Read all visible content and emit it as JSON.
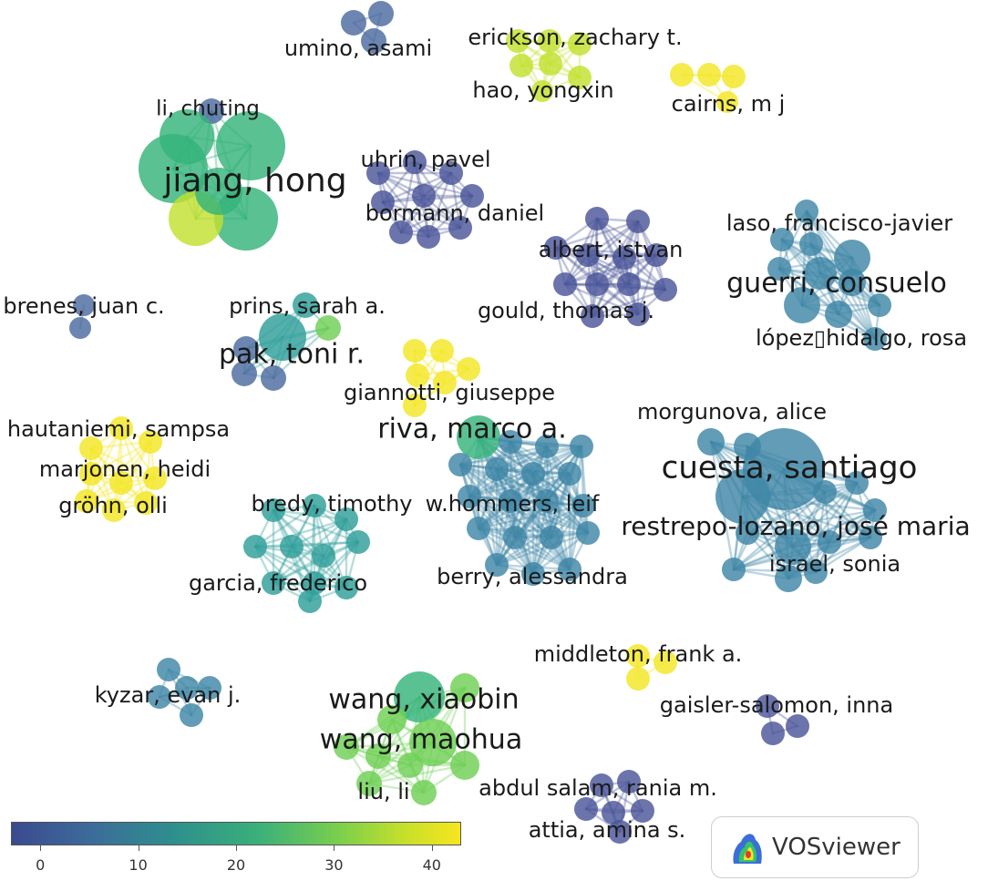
{
  "colors": {
    "c0": "#4b5598",
    "c5": "#4c6aa0",
    "c10": "#3f86a6",
    "c15": "#2f9f9a",
    "c20": "#35b37a",
    "c28": "#6fcf55",
    "c35": "#c2e02f",
    "c42": "#f3e626"
  },
  "clusters": [
    {
      "name": "jiang-hong",
      "labels": [
        "li, chuting",
        "jiang, hong"
      ]
    },
    {
      "name": "umino",
      "labels": [
        "umino, asami"
      ]
    },
    {
      "name": "erickson",
      "labels": [
        "erickson, zachary t.",
        "hao, yongxin"
      ]
    },
    {
      "name": "cairns",
      "labels": [
        "cairns, m j"
      ]
    },
    {
      "name": "uhrin",
      "labels": [
        "uhrin, pavel",
        "bormann, daniel"
      ]
    },
    {
      "name": "albert",
      "labels": [
        "albert, istvan",
        "gould, thomas j."
      ]
    },
    {
      "name": "guerri",
      "labels": [
        "laso, francisco-javier",
        "guerri, consuelo",
        "lópez▯hidalgo, rosa"
      ]
    },
    {
      "name": "brenes",
      "labels": [
        "brenes, juan c."
      ]
    },
    {
      "name": "pak",
      "labels": [
        "prins, sarah a.",
        "pak, toni r."
      ]
    },
    {
      "name": "giannotti",
      "labels": [
        "giannotti, giuseppe"
      ]
    },
    {
      "name": "hautaniemi",
      "labels": [
        "hautaniemi, sampsa",
        "marjonen, heidi",
        "gröhn, olli"
      ]
    },
    {
      "name": "riva",
      "labels": [
        "riva, marco a.",
        "w.hommers, leif",
        "berry, alessandra"
      ]
    },
    {
      "name": "cuesta",
      "labels": [
        "morgunova, alice",
        "cuesta, santiago",
        "restrepo-lozano, josé maria",
        "israel, sonia"
      ]
    },
    {
      "name": "bredy",
      "labels": [
        "bredy, timothy",
        "garcia, frederico"
      ]
    },
    {
      "name": "middleton",
      "labels": [
        "middleton, frank a."
      ]
    },
    {
      "name": "gaisler",
      "labels": [
        "gaisler-salomon, inna"
      ]
    },
    {
      "name": "kyzar",
      "labels": [
        "kyzar, evan j."
      ]
    },
    {
      "name": "wang",
      "labels": [
        "wang, xiaobin",
        "wang, maohua",
        "liu, li"
      ]
    },
    {
      "name": "abdul",
      "labels": [
        "abdul salam, rania m.",
        "attia, amina s."
      ]
    }
  ],
  "scale": {
    "ticks": [
      "0",
      "10",
      "20",
      "30",
      "40"
    ],
    "min": -3,
    "max": 43
  },
  "branding": {
    "text": "VOSviewer"
  }
}
